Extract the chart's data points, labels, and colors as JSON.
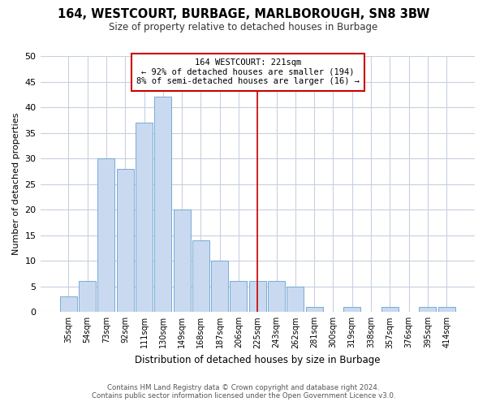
{
  "title": "164, WESTCOURT, BURBAGE, MARLBOROUGH, SN8 3BW",
  "subtitle": "Size of property relative to detached houses in Burbage",
  "xlabel": "Distribution of detached houses by size in Burbage",
  "ylabel": "Number of detached properties",
  "bar_labels": [
    "35sqm",
    "54sqm",
    "73sqm",
    "92sqm",
    "111sqm",
    "130sqm",
    "149sqm",
    "168sqm",
    "187sqm",
    "206sqm",
    "225sqm",
    "243sqm",
    "262sqm",
    "281sqm",
    "300sqm",
    "319sqm",
    "338sqm",
    "357sqm",
    "376sqm",
    "395sqm",
    "414sqm"
  ],
  "bar_values": [
    3,
    6,
    30,
    28,
    37,
    42,
    20,
    14,
    10,
    6,
    6,
    6,
    5,
    1,
    0,
    1,
    0,
    1,
    0,
    1,
    1
  ],
  "bar_color": "#c8d9f0",
  "bar_edge_color": "#7aaad4",
  "vline_color": "#cc0000",
  "annotation_text": "164 WESTCOURT: 221sqm\n← 92% of detached houses are smaller (194)\n8% of semi-detached houses are larger (16) →",
  "annotation_box_edge": "#cc0000",
  "ylim": [
    0,
    50
  ],
  "yticks": [
    0,
    5,
    10,
    15,
    20,
    25,
    30,
    35,
    40,
    45,
    50
  ],
  "footer_line1": "Contains HM Land Registry data © Crown copyright and database right 2024.",
  "footer_line2": "Contains public sector information licensed under the Open Government Licence v3.0.",
  "bg_color": "#ffffff",
  "grid_color": "#c8d0e0",
  "title_fontsize": 10.5,
  "subtitle_fontsize": 8.5
}
